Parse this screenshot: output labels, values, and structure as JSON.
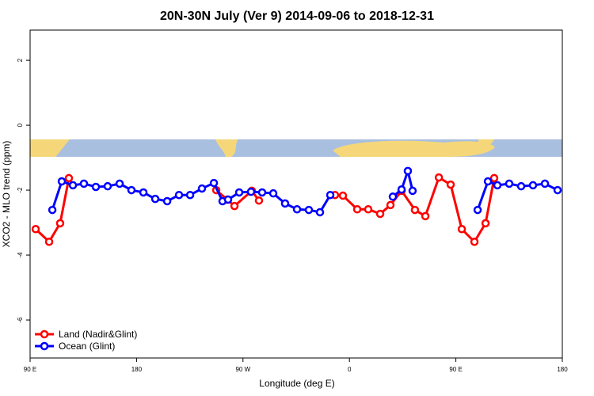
{
  "chart_data": {
    "type": "line",
    "title": "20N-30N July (Ver 9)   2014-09-06 to 2018-12-31",
    "x_label": "Longitude (deg E)",
    "y_label": "XCO2 - MLO trend (ppm)",
    "xlim": [
      90,
      540
    ],
    "ylim": [
      -7.17,
      2.93
    ],
    "xticks": [
      {
        "value": 90,
        "label": "90 E"
      },
      180,
      {
        "value": 270,
        "label": "90 W"
      },
      {
        "value": 360,
        "label": "0"
      },
      {
        "value": 450,
        "label": "90 E"
      },
      {
        "value": 540,
        "label": "180"
      }
    ],
    "yticks": [
      -6,
      -4,
      -2,
      0,
      2
    ],
    "legend": "bottomleft",
    "series": [
      {
        "name": "Land (Nadir&Glint)",
        "color": "#ff0000",
        "x": [
          94.7,
          106.1,
          115.4,
          122.8,
          null,
          247.4,
          256.7,
          262.8,
          277.5,
          283.5,
          null,
          347.8,
          354.5,
          366.6,
          375.9,
          386.0,
          394.7,
          404.1,
          415.4,
          424.2,
          435.6,
          445.6,
          455.0,
          465.7,
          475.1,
          482.4
        ],
        "values": [
          -3.2,
          -3.59,
          -3.02,
          -1.63,
          null,
          -2.0,
          -2.29,
          -2.49,
          -2.02,
          -2.32,
          null,
          -2.15,
          -2.17,
          -2.59,
          -2.59,
          -2.73,
          -2.46,
          -2.02,
          -2.61,
          -2.8,
          -1.61,
          -1.83,
          -3.2,
          -3.59,
          -3.02,
          -1.63
        ]
      },
      {
        "name": "Ocean (Glint)",
        "color": "#0000ff",
        "x": [
          108.8,
          116.8,
          126.2,
          135.5,
          145.6,
          155.6,
          165.7,
          175.7,
          185.8,
          195.8,
          205.9,
          215.9,
          225.3,
          235.3,
          245.4,
          252.7,
          257.4,
          266.8,
          276.8,
          286.2,
          295.6,
          305.6,
          315.7,
          325.7,
          335.1,
          343.8,
          null,
          396.7,
          404.1,
          409.4,
          413.4,
          null,
          468.4,
          477.1,
          485.1,
          495.1,
          505.2,
          515.2,
          525.3,
          536.0
        ],
        "values": [
          -2.61,
          -1.73,
          -1.85,
          -1.8,
          -1.9,
          -1.88,
          -1.8,
          -2.0,
          -2.07,
          -2.27,
          -2.34,
          -2.15,
          -2.15,
          -1.95,
          -1.78,
          -2.34,
          -2.29,
          -2.07,
          -2.05,
          -2.07,
          -2.1,
          -2.41,
          -2.59,
          -2.61,
          -2.68,
          -2.15,
          null,
          -2.2,
          -1.98,
          -1.41,
          -2.02,
          null,
          -2.61,
          -1.73,
          -1.85,
          -1.8,
          -1.88,
          -1.85,
          -1.8,
          -2.0
        ]
      }
    ]
  }
}
